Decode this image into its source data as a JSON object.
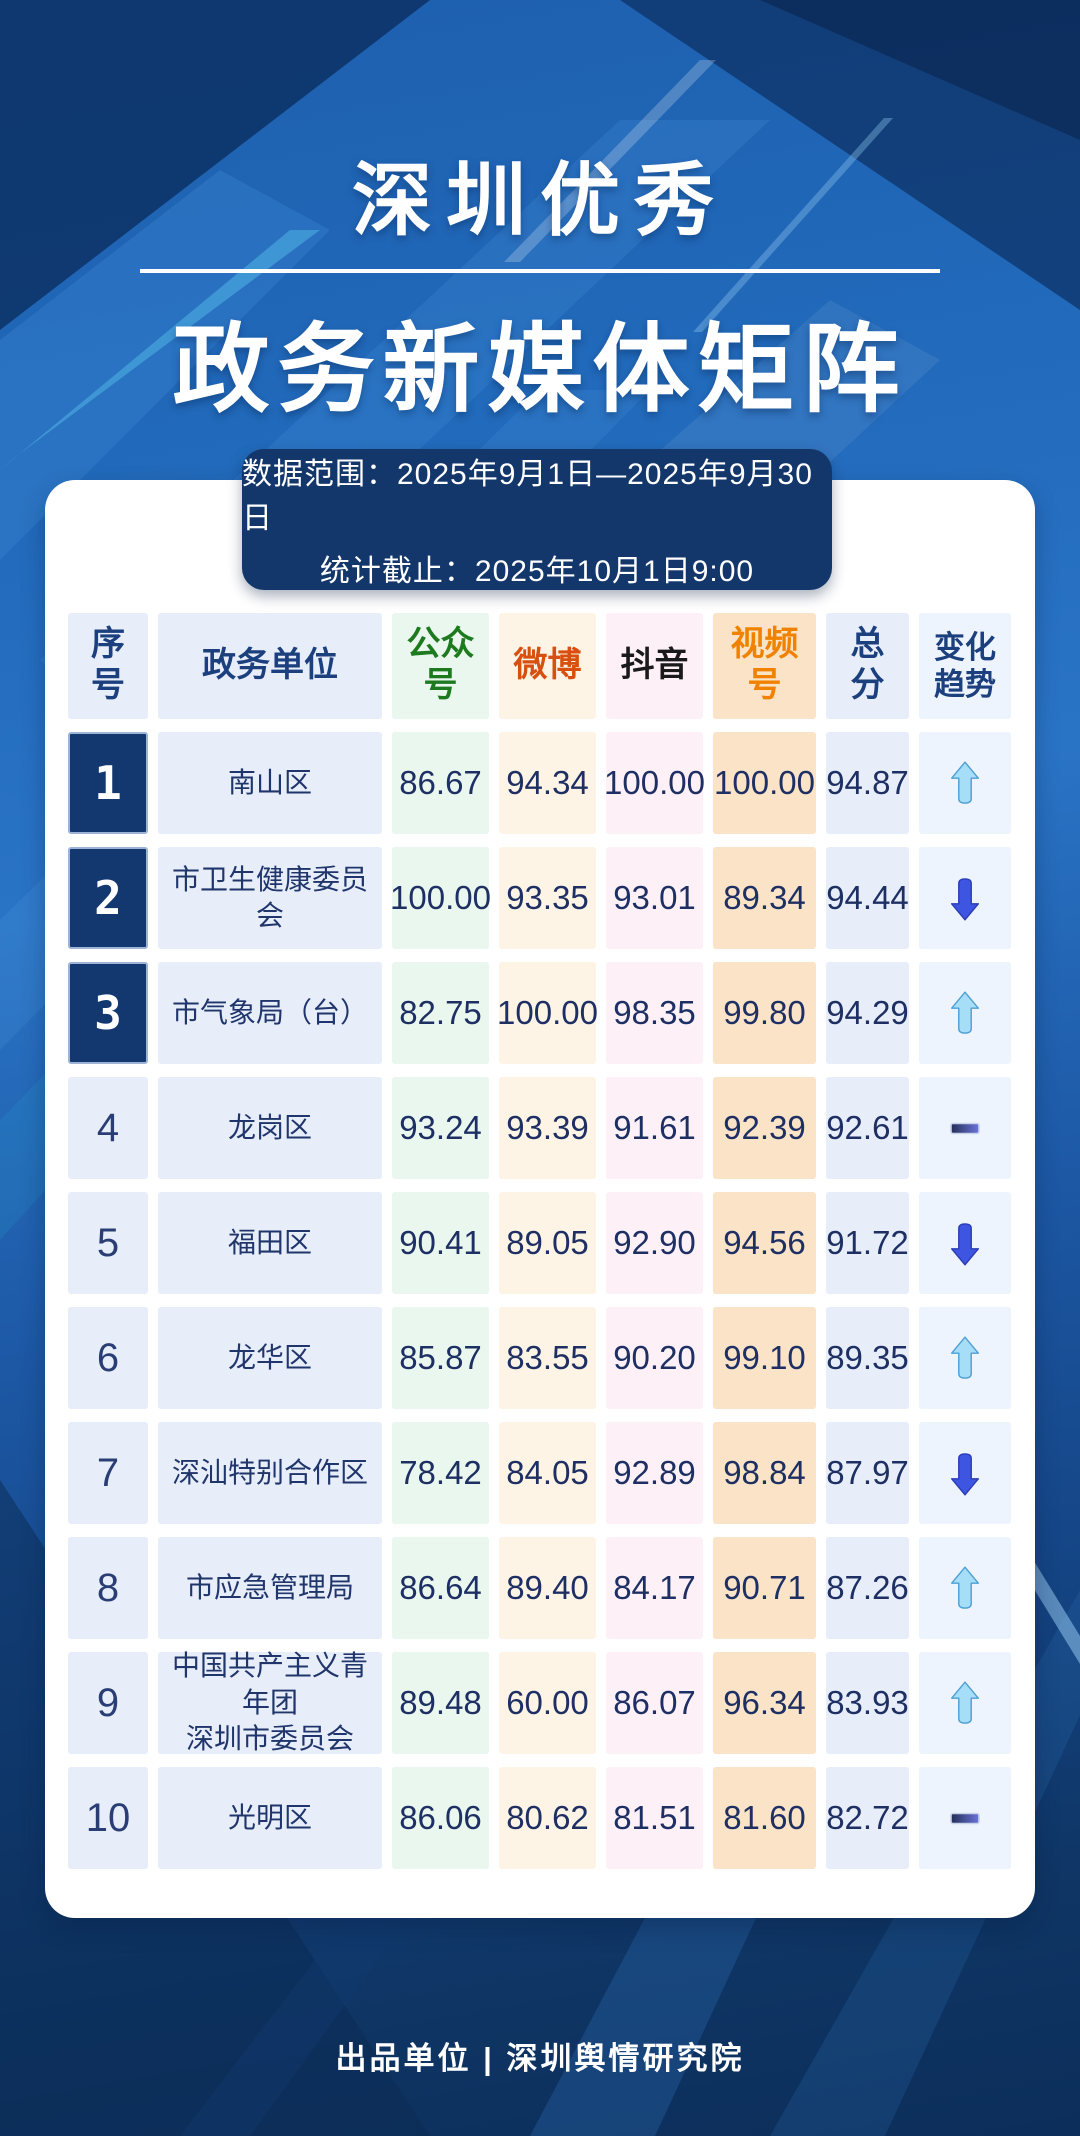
{
  "poster": {
    "title_line1": "深圳优秀",
    "title_line2": "政务新媒体矩阵",
    "info_line1": "数据范围：2025年9月1日—2025年9月30日",
    "info_line2": "统计截止：2025年10月1日9:00",
    "footer": "出品单位 | 深圳舆情研究院"
  },
  "colors": {
    "background_top": "#2a74c6",
    "background_bottom": "#0c2e5a",
    "info_box_bg": "#14376b",
    "card_bg": "#ffffff",
    "rank_top3_bg": "#12386f",
    "navy_header_text": "#1c3f7e",
    "score_text": "#1e2f63",
    "wechat_green": "#1d7a1f",
    "weibo_orange_red": "#d7500f",
    "douyin_black": "#1a1a1a",
    "shipinhao_orange": "#f08200",
    "up_arrow": "#a7def7",
    "down_arrow": "#3d55e0",
    "flat_dash_left": "#242e57",
    "flat_dash_right": "#6b74da"
  },
  "table": {
    "columns": [
      {
        "key": "rank",
        "label": "序号",
        "header_color": "#1c3f7e",
        "cell_bg": "#e7eefa"
      },
      {
        "key": "unit",
        "label": "政务单位",
        "header_color": "#1c3f7e",
        "cell_bg": "#e7eefa"
      },
      {
        "key": "wechat",
        "label": "公众号",
        "header_color": "#1d7a1f",
        "cell_bg": "#e9f7ee"
      },
      {
        "key": "weibo",
        "label": "微博",
        "header_color": "#d7500f",
        "cell_bg": "#fdf4e6"
      },
      {
        "key": "douyin",
        "label": "抖音",
        "header_color": "#1a1a1a",
        "cell_bg": "#fdf0f7"
      },
      {
        "key": "shipinhao",
        "label": "视频号",
        "header_color": "#f08200",
        "cell_bg": "#fae3c6"
      },
      {
        "key": "total",
        "label": "总分",
        "header_color": "#1c3f7e",
        "cell_bg": "#e7eefa"
      },
      {
        "key": "trend",
        "label": "变化趋势",
        "header_color": "#1c3f7e",
        "cell_bg": "#eef4fd"
      }
    ],
    "rows": [
      {
        "rank": "1",
        "unit": "南山区",
        "wechat": "86.67",
        "weibo": "94.34",
        "douyin": "100.00",
        "shipinhao": "100.00",
        "total": "94.87",
        "trend": "up"
      },
      {
        "rank": "2",
        "unit": "市卫生健康委员会",
        "wechat": "100.00",
        "weibo": "93.35",
        "douyin": "93.01",
        "shipinhao": "89.34",
        "total": "94.44",
        "trend": "down"
      },
      {
        "rank": "3",
        "unit": "市气象局（台）",
        "wechat": "82.75",
        "weibo": "100.00",
        "douyin": "98.35",
        "shipinhao": "99.80",
        "total": "94.29",
        "trend": "up"
      },
      {
        "rank": "4",
        "unit": "龙岗区",
        "wechat": "93.24",
        "weibo": "93.39",
        "douyin": "91.61",
        "shipinhao": "92.39",
        "total": "92.61",
        "trend": "flat"
      },
      {
        "rank": "5",
        "unit": "福田区",
        "wechat": "90.41",
        "weibo": "89.05",
        "douyin": "92.90",
        "shipinhao": "94.56",
        "total": "91.72",
        "trend": "down"
      },
      {
        "rank": "6",
        "unit": "龙华区",
        "wechat": "85.87",
        "weibo": "83.55",
        "douyin": "90.20",
        "shipinhao": "99.10",
        "total": "89.35",
        "trend": "up"
      },
      {
        "rank": "7",
        "unit": "深汕特别合作区",
        "wechat": "78.42",
        "weibo": "84.05",
        "douyin": "92.89",
        "shipinhao": "98.84",
        "total": "87.97",
        "trend": "down"
      },
      {
        "rank": "8",
        "unit": "市应急管理局",
        "wechat": "86.64",
        "weibo": "89.40",
        "douyin": "84.17",
        "shipinhao": "90.71",
        "total": "87.26",
        "trend": "up"
      },
      {
        "rank": "9",
        "unit": "中国共产主义青年团\n深圳市委员会",
        "wechat": "89.48",
        "weibo": "60.00",
        "douyin": "86.07",
        "shipinhao": "96.34",
        "total": "83.93",
        "trend": "up"
      },
      {
        "rank": "10",
        "unit": "光明区",
        "wechat": "86.06",
        "weibo": "80.62",
        "douyin": "81.51",
        "shipinhao": "81.60",
        "total": "82.72",
        "trend": "flat"
      }
    ]
  },
  "chart_data": {
    "type": "table",
    "title": "深圳优秀政务新媒体矩阵",
    "subtitle_lines": [
      "数据范围：2025年9月1日—2025年9月30日",
      "统计截止：2025年10月1日9:00"
    ],
    "columns": [
      "序号",
      "政务单位",
      "公众号",
      "微博",
      "抖音",
      "视频号",
      "总分",
      "变化趋势"
    ],
    "rows": [
      [
        1,
        "南山区",
        86.67,
        94.34,
        100.0,
        100.0,
        94.87,
        "up"
      ],
      [
        2,
        "市卫生健康委员会",
        100.0,
        93.35,
        93.01,
        89.34,
        94.44,
        "down"
      ],
      [
        3,
        "市气象局（台）",
        82.75,
        100.0,
        98.35,
        99.8,
        94.29,
        "up"
      ],
      [
        4,
        "龙岗区",
        93.24,
        93.39,
        91.61,
        92.39,
        92.61,
        "flat"
      ],
      [
        5,
        "福田区",
        90.41,
        89.05,
        92.9,
        94.56,
        91.72,
        "down"
      ],
      [
        6,
        "龙华区",
        85.87,
        83.55,
        90.2,
        99.1,
        89.35,
        "up"
      ],
      [
        7,
        "深汕特别合作区",
        78.42,
        84.05,
        92.89,
        98.84,
        87.97,
        "down"
      ],
      [
        8,
        "市应急管理局",
        86.64,
        89.4,
        84.17,
        90.71,
        87.26,
        "up"
      ],
      [
        9,
        "中国共产主义青年团深圳市委员会",
        89.48,
        60.0,
        86.07,
        96.34,
        83.93,
        "up"
      ],
      [
        10,
        "光明区",
        86.06,
        80.62,
        81.51,
        81.6,
        82.72,
        "flat"
      ]
    ]
  }
}
